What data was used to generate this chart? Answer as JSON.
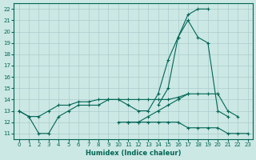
{
  "xlabel": "Humidex (Indice chaleur)",
  "bg_color": "#cce8e4",
  "line_color": "#006655",
  "grid_color": "#aacccc",
  "ylim": [
    10.5,
    22.5
  ],
  "xlim": [
    -0.5,
    23.5
  ],
  "x_values": [
    0,
    1,
    2,
    3,
    4,
    5,
    6,
    7,
    8,
    9,
    10,
    11,
    12,
    13,
    14,
    15,
    16,
    17,
    18,
    19,
    20,
    21,
    22,
    23
  ],
  "lineA": [
    null,
    null,
    null,
    null,
    null,
    null,
    null,
    null,
    null,
    null,
    null,
    null,
    null,
    null,
    13.5,
    15,
    19.5,
    21.5,
    22,
    22,
    null,
    null,
    null,
    null
  ],
  "lineB": [
    13,
    12.5,
    11,
    11,
    12.5,
    13,
    13.5,
    13.5,
    13.5,
    14,
    14,
    13.5,
    13,
    13,
    14.5,
    17.5,
    19.5,
    21,
    19.5,
    19,
    13,
    12.5,
    null,
    null
  ],
  "lineC": [
    13,
    12.5,
    12.5,
    13,
    13.5,
    13.5,
    13.8,
    13.8,
    14,
    14,
    14,
    14,
    14,
    14,
    14,
    14,
    14.2,
    14.5,
    14.5,
    14.5,
    14.5,
    null,
    null,
    null
  ],
  "lineD": [
    null,
    null,
    null,
    null,
    null,
    null,
    null,
    null,
    null,
    null,
    null,
    12,
    12,
    12.5,
    13,
    13.5,
    14,
    14.5,
    null,
    null,
    null,
    null,
    null,
    null
  ],
  "lineE_slow": [
    null,
    null,
    null,
    null,
    null,
    null,
    null,
    null,
    null,
    null,
    null,
    null,
    null,
    null,
    null,
    null,
    null,
    null,
    null,
    null,
    14.5,
    13,
    12.5,
    null
  ],
  "lineF": [
    null,
    null,
    null,
    null,
    null,
    null,
    null,
    null,
    null,
    null,
    12,
    12,
    12,
    12,
    12,
    12,
    12,
    11.5,
    11.5,
    11.5,
    11.5,
    11,
    11,
    11
  ]
}
